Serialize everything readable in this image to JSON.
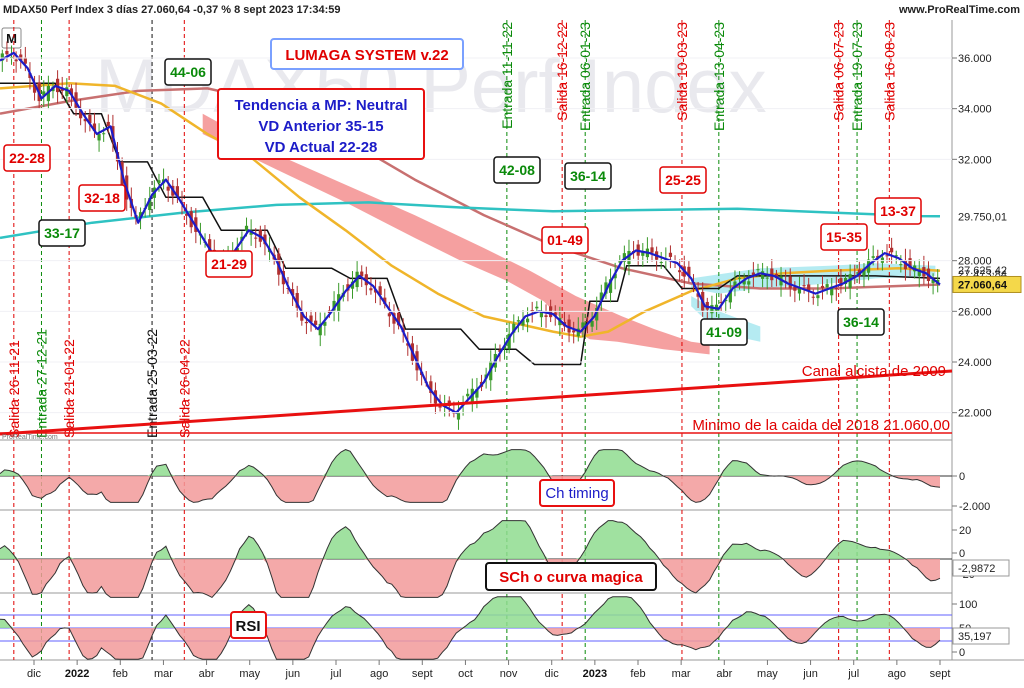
{
  "header": {
    "title": "MDAX50 Perf Index 3 días 27.060,64 -0,37 % 8 sept 2023 17:34:59",
    "site": "www.ProRealTime.com",
    "mode_button": "M",
    "watermark": "MDAX50 Perf Index",
    "small_watermark": "ProRealTime.com"
  },
  "colors": {
    "up": "#3a9a2a",
    "down": "#b03030",
    "blue_line": "#1c1cc8",
    "orange_line": "#f0b52a",
    "cyan_line": "#2fc2c2",
    "brown_line": "#c87070",
    "black_line": "#111111",
    "cloud_red": "#f28080",
    "cloud_cyan": "#a8e8f0",
    "green_text": "#0a8a0a",
    "red_text": "#e00000",
    "blue_text": "#1c1cc8"
  },
  "chart_data": {
    "type": "candlestick",
    "title": "MDAX50 Perf Index 3 días",
    "price_axis": {
      "ticks": [
        "36.000",
        "34.000",
        "32.000",
        "28.000",
        "26.000",
        "24.000",
        "22.000"
      ],
      "tick_values": [
        36000,
        34000,
        32000,
        28000,
        26000,
        24000,
        22000
      ],
      "ylim": [
        21000,
        37500
      ],
      "current": "27.060,64",
      "labels": [
        {
          "text": "29.750,01",
          "value": 29750,
          "color": "#1aa0a0"
        },
        {
          "text": "27.625,42",
          "value": 27625,
          "color": "#222"
        },
        {
          "text": "27.473,84",
          "value": 27474,
          "color": "#222"
        }
      ]
    },
    "time_axis": [
      "dic",
      "2022",
      "feb",
      "mar",
      "abr",
      "may",
      "jun",
      "jul",
      "ago",
      "sept",
      "oct",
      "nov",
      "dic",
      "2023",
      "feb",
      "mar",
      "abr",
      "may",
      "jun",
      "jul",
      "ago",
      "sept"
    ],
    "close_path": [
      [
        0,
        35900
      ],
      [
        3,
        36200
      ],
      [
        6,
        35600
      ],
      [
        9,
        34400
      ],
      [
        12,
        34900
      ],
      [
        15,
        34700
      ],
      [
        18,
        33800
      ],
      [
        21,
        33000
      ],
      [
        24,
        33300
      ],
      [
        27,
        31100
      ],
      [
        30,
        29500
      ],
      [
        33,
        30600
      ],
      [
        36,
        31200
      ],
      [
        39,
        30400
      ],
      [
        42,
        29500
      ],
      [
        45,
        28600
      ],
      [
        48,
        27800
      ],
      [
        51,
        28400
      ],
      [
        54,
        29200
      ],
      [
        57,
        28900
      ],
      [
        60,
        28000
      ],
      [
        63,
        26800
      ],
      [
        66,
        25800
      ],
      [
        69,
        25300
      ],
      [
        72,
        26000
      ],
      [
        75,
        26800
      ],
      [
        78,
        27400
      ],
      [
        81,
        27000
      ],
      [
        84,
        26200
      ],
      [
        87,
        25400
      ],
      [
        90,
        24200
      ],
      [
        93,
        23000
      ],
      [
        96,
        22300
      ],
      [
        99,
        22000
      ],
      [
        102,
        22600
      ],
      [
        105,
        23200
      ],
      [
        108,
        24200
      ],
      [
        111,
        25100
      ],
      [
        114,
        25800
      ],
      [
        117,
        26000
      ],
      [
        120,
        25900
      ],
      [
        123,
        25400
      ],
      [
        126,
        25200
      ],
      [
        129,
        25800
      ],
      [
        132,
        27000
      ],
      [
        135,
        28000
      ],
      [
        138,
        28400
      ],
      [
        141,
        28300
      ],
      [
        144,
        28100
      ],
      [
        147,
        27900
      ],
      [
        150,
        27300
      ],
      [
        153,
        26200
      ],
      [
        156,
        26100
      ],
      [
        159,
        26900
      ],
      [
        162,
        27300
      ],
      [
        165,
        27500
      ],
      [
        168,
        27400
      ],
      [
        171,
        27100
      ],
      [
        174,
        26900
      ],
      [
        177,
        26700
      ],
      [
        180,
        26900
      ],
      [
        183,
        27100
      ],
      [
        186,
        27400
      ],
      [
        189,
        27900
      ],
      [
        192,
        28300
      ],
      [
        195,
        28100
      ],
      [
        198,
        27700
      ],
      [
        201,
        27500
      ],
      [
        203,
        27200
      ],
      [
        204,
        27060
      ]
    ],
    "vertical_markers": [
      {
        "label": "Salida 26-11-21",
        "type": "exit",
        "t": 3
      },
      {
        "label": "Entrada 27-12-21",
        "type": "entry",
        "t": 9
      },
      {
        "label": "Salida 21-01-22",
        "type": "exit",
        "t": 15
      },
      {
        "label": "Entrada 25-03-22",
        "type": "entry_black",
        "t": 33
      },
      {
        "label": "Salida 26-04-22",
        "type": "exit",
        "t": 40
      },
      {
        "label": "Entrada 11-11-22",
        "type": "entry",
        "t": 110
      },
      {
        "label": "Salida 16-12-22",
        "type": "exit",
        "t": 122
      },
      {
        "label": "Entrada 06-01-23",
        "type": "entry",
        "t": 127
      },
      {
        "label": "Salida 10-03-23",
        "type": "exit",
        "t": 148
      },
      {
        "label": "Entrada 13-04-23",
        "type": "entry",
        "t": 156
      },
      {
        "label": "Salida 06-07-23",
        "type": "exit",
        "t": 182
      },
      {
        "label": "Entrada 19-07-23",
        "type": "entry",
        "t": 186
      },
      {
        "label": "Salida 16-08-23",
        "type": "exit",
        "t": 193
      }
    ],
    "vd_boxes": [
      {
        "text": "22-28",
        "color": "red"
      },
      {
        "text": "33-17",
        "color": "green"
      },
      {
        "text": "32-18",
        "color": "red"
      },
      {
        "text": "44-06",
        "color": "green"
      },
      {
        "text": "21-29",
        "color": "red"
      },
      {
        "text": "42-08",
        "color": "green"
      },
      {
        "text": "36-14",
        "color": "green"
      },
      {
        "text": "01-49",
        "color": "red"
      },
      {
        "text": "25-25",
        "color": "red"
      },
      {
        "text": "41-09",
        "color": "green"
      },
      {
        "text": "15-35",
        "color": "red"
      },
      {
        "text": "13-37",
        "color": "red"
      },
      {
        "text": "36-14",
        "color": "green"
      }
    ],
    "annotations": {
      "system_title": "LUMAGA SYSTEM v.22",
      "trend_lines": [
        "Tendencia a MP: Neutral",
        "VD Anterior 35-15",
        "VD Actual 22-28"
      ],
      "channel_label": "Canal alcista de 2009",
      "minimum_label": "Minimo de la caida del 2018  21.060,00"
    },
    "indicators": [
      {
        "name": "Ch timing",
        "ticks": [
          "0",
          "-2.000"
        ]
      },
      {
        "name": "SCh o curva magica",
        "ticks": [
          "20",
          "0",
          "-20"
        ],
        "value": "-2,9872"
      },
      {
        "name": "RSI",
        "ticks": [
          "100",
          "50",
          "0"
        ],
        "value": "35,197"
      }
    ]
  }
}
